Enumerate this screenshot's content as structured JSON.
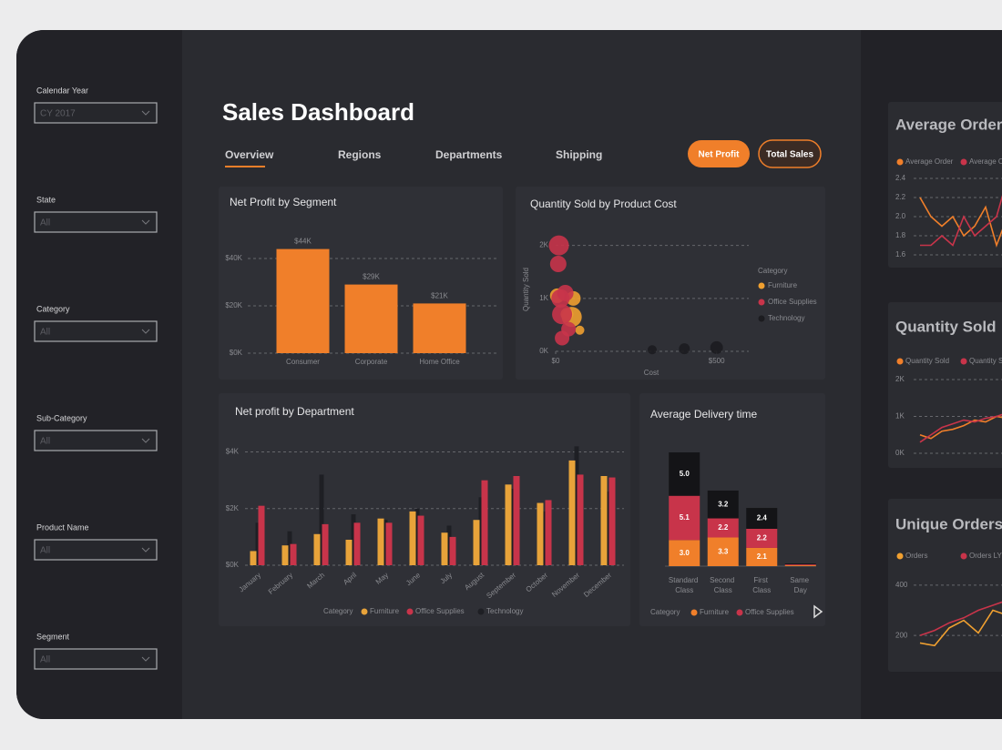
{
  "sidebar": {
    "filters": [
      {
        "label": "Calendar Year",
        "value": "CY 2017"
      },
      {
        "label": "State",
        "value": "All"
      },
      {
        "label": "Category",
        "value": "All"
      },
      {
        "label": "Sub-Category",
        "value": "All"
      },
      {
        "label": "Product Name",
        "value": "All"
      },
      {
        "label": "Segment",
        "value": "All"
      }
    ]
  },
  "header": {
    "title": "Sales Dashboard",
    "tabs": [
      "Overview",
      "Regions",
      "Departments",
      "Shipping"
    ],
    "buttons": [
      "Net Profit",
      "Total Sales"
    ]
  },
  "net_profit_by_segment": {
    "type": "bar",
    "title": "Net Profit by Segment",
    "categories": [
      "Consumer",
      "Corporate",
      "Home Office"
    ],
    "values": [
      44000,
      29000,
      21000
    ],
    "value_labels": [
      "$44K",
      "$29K",
      "$21K"
    ],
    "color": "#f07f2a",
    "ylim": [
      0,
      50000
    ],
    "yticks": [
      {
        "value": 0,
        "label": "$0K"
      },
      {
        "value": 20000,
        "label": "$20K"
      },
      {
        "value": 40000,
        "label": "$40K"
      }
    ],
    "grid": true
  },
  "quantity_sold_by_product_cost": {
    "type": "scatter",
    "title": "Quantity Sold by Product Cost",
    "x_label": "Cost",
    "y_label": "Quantity Sold",
    "legend_title": "Category",
    "xlim": [
      0,
      600
    ],
    "xticks": [
      {
        "value": 0,
        "label": "$0"
      },
      {
        "value": 500,
        "label": "$500"
      }
    ],
    "ylim": [
      0,
      2200
    ],
    "yticks": [
      {
        "value": 0,
        "label": "0K"
      },
      {
        "value": 1000,
        "label": "1K"
      },
      {
        "value": 2000,
        "label": "2K"
      }
    ],
    "grid": true,
    "series": [
      {
        "name": "Furniture",
        "color": "#f0a030",
        "x": [
          5,
          35,
          50,
          55,
          75
        ],
        "y": [
          1050,
          700,
          650,
          1000,
          400
        ],
        "size": [
          8,
          7,
          11,
          8,
          5
        ]
      },
      {
        "name": "Office Supplies",
        "color": "#c8344a",
        "x": [
          10,
          8,
          15,
          20,
          20,
          40,
          30
        ],
        "y": [
          2000,
          1650,
          1000,
          700,
          250,
          420,
          1100
        ],
        "size": [
          11,
          9,
          10,
          11,
          8,
          8,
          9
        ]
      },
      {
        "name": "Technology",
        "color": "#1c1c20",
        "x": [
          300,
          400,
          500
        ],
        "y": [
          30,
          50,
          70
        ],
        "size": [
          5,
          6,
          7
        ]
      }
    ]
  },
  "net_profit_by_department": {
    "type": "bar",
    "title": "Net profit by Department",
    "legend_title": "Category",
    "categories": [
      "January",
      "February",
      "March",
      "April",
      "May",
      "June",
      "July",
      "August",
      "September",
      "October",
      "November",
      "December"
    ],
    "ylim": [
      0,
      4500
    ],
    "yticks": [
      {
        "value": 0,
        "label": "$0K"
      },
      {
        "value": 2000,
        "label": "$2K"
      },
      {
        "value": 4000,
        "label": "$4K"
      }
    ],
    "grid": true,
    "series": [
      {
        "name": "Furniture",
        "color": "#e8a33a",
        "values": [
          500,
          700,
          1100,
          900,
          1650,
          1900,
          1150,
          1600,
          2850,
          2200,
          3700,
          3150
        ]
      },
      {
        "name": "Office Supplies",
        "color": "#c8344a",
        "values": [
          2100,
          750,
          1450,
          1500,
          1500,
          1750,
          1000,
          3000,
          3150,
          2300,
          3200,
          3100
        ]
      },
      {
        "name": "Technology",
        "color": "#1e1f24",
        "values": [
          1500,
          1200,
          3200,
          1800,
          1600,
          2000,
          1400,
          2400,
          2700,
          1900,
          4200,
          2600
        ]
      }
    ]
  },
  "average_delivery_time": {
    "type": "stacked-bar",
    "title": "Average Delivery time",
    "legend_title": "Category",
    "categories": [
      "Standard Class",
      "Second Class",
      "First Class",
      "Same Day"
    ],
    "series": [
      {
        "name": "Furniture",
        "color": "#f07f2a",
        "values": [
          3.0,
          3.3,
          2.1,
          0.1
        ],
        "value_labels": [
          "3.0",
          "3.3",
          "2.1",
          null
        ]
      },
      {
        "name": "Office Supplies",
        "color": "#c8344a",
        "values": [
          5.1,
          2.2,
          2.2,
          0.1
        ],
        "value_labels": [
          "5.1",
          "2.2",
          "2.2",
          null
        ]
      },
      {
        "name": "Technology",
        "color": "#141417",
        "values": [
          5.0,
          3.2,
          2.4,
          0.1
        ],
        "value_labels": [
          "5.0",
          "3.2",
          "2.4",
          null
        ]
      }
    ]
  },
  "side_charts": [
    {
      "type": "line",
      "title": "Average Order",
      "ylim": [
        1.6,
        2.4
      ],
      "yticks": [
        1.6,
        1.8,
        {
          "value": 2,
          "label": "2.0"
        },
        2.2,
        2.4
      ],
      "grid": true,
      "series": [
        {
          "name": "Average Order",
          "color": "#f07f2a",
          "values": [
            2.2,
            2.0,
            1.9,
            2.0,
            1.8,
            1.9,
            2.1,
            1.7,
            2.0,
            2.3
          ]
        },
        {
          "name": "Average Order LY",
          "color": "#c8344a",
          "values": [
            1.7,
            1.7,
            1.8,
            1.7,
            2.0,
            1.8,
            1.9,
            2.0,
            2.4,
            2.1
          ]
        }
      ]
    },
    {
      "type": "line",
      "title": "Quantity Sold",
      "ylim": [
        0,
        2000
      ],
      "yticks": [
        {
          "value": 0,
          "label": "0K"
        },
        {
          "value": 1000,
          "label": "1K"
        },
        {
          "value": 2000,
          "label": "2K"
        }
      ],
      "grid": true,
      "series": [
        {
          "name": "Quantity Sold",
          "color": "#f07f2a",
          "values": [
            500,
            400,
            600,
            650,
            750,
            900,
            850,
            1000,
            950
          ]
        },
        {
          "name": "Quantity Sold LY",
          "color": "#c8344a",
          "values": [
            300,
            500,
            700,
            800,
            900,
            850,
            950,
            1000,
            1100
          ]
        }
      ]
    },
    {
      "type": "line",
      "title": "Unique Orders",
      "ylim": [
        150,
        450
      ],
      "yticks": [
        200,
        400
      ],
      "grid": true,
      "series": [
        {
          "name": "Orders",
          "color": "#f0a030",
          "values": [
            170,
            160,
            230,
            260,
            210,
            300,
            280
          ]
        },
        {
          "name": "Orders LY",
          "color": "#c8344a",
          "values": [
            200,
            220,
            250,
            270,
            300,
            320,
            340
          ]
        }
      ]
    }
  ]
}
